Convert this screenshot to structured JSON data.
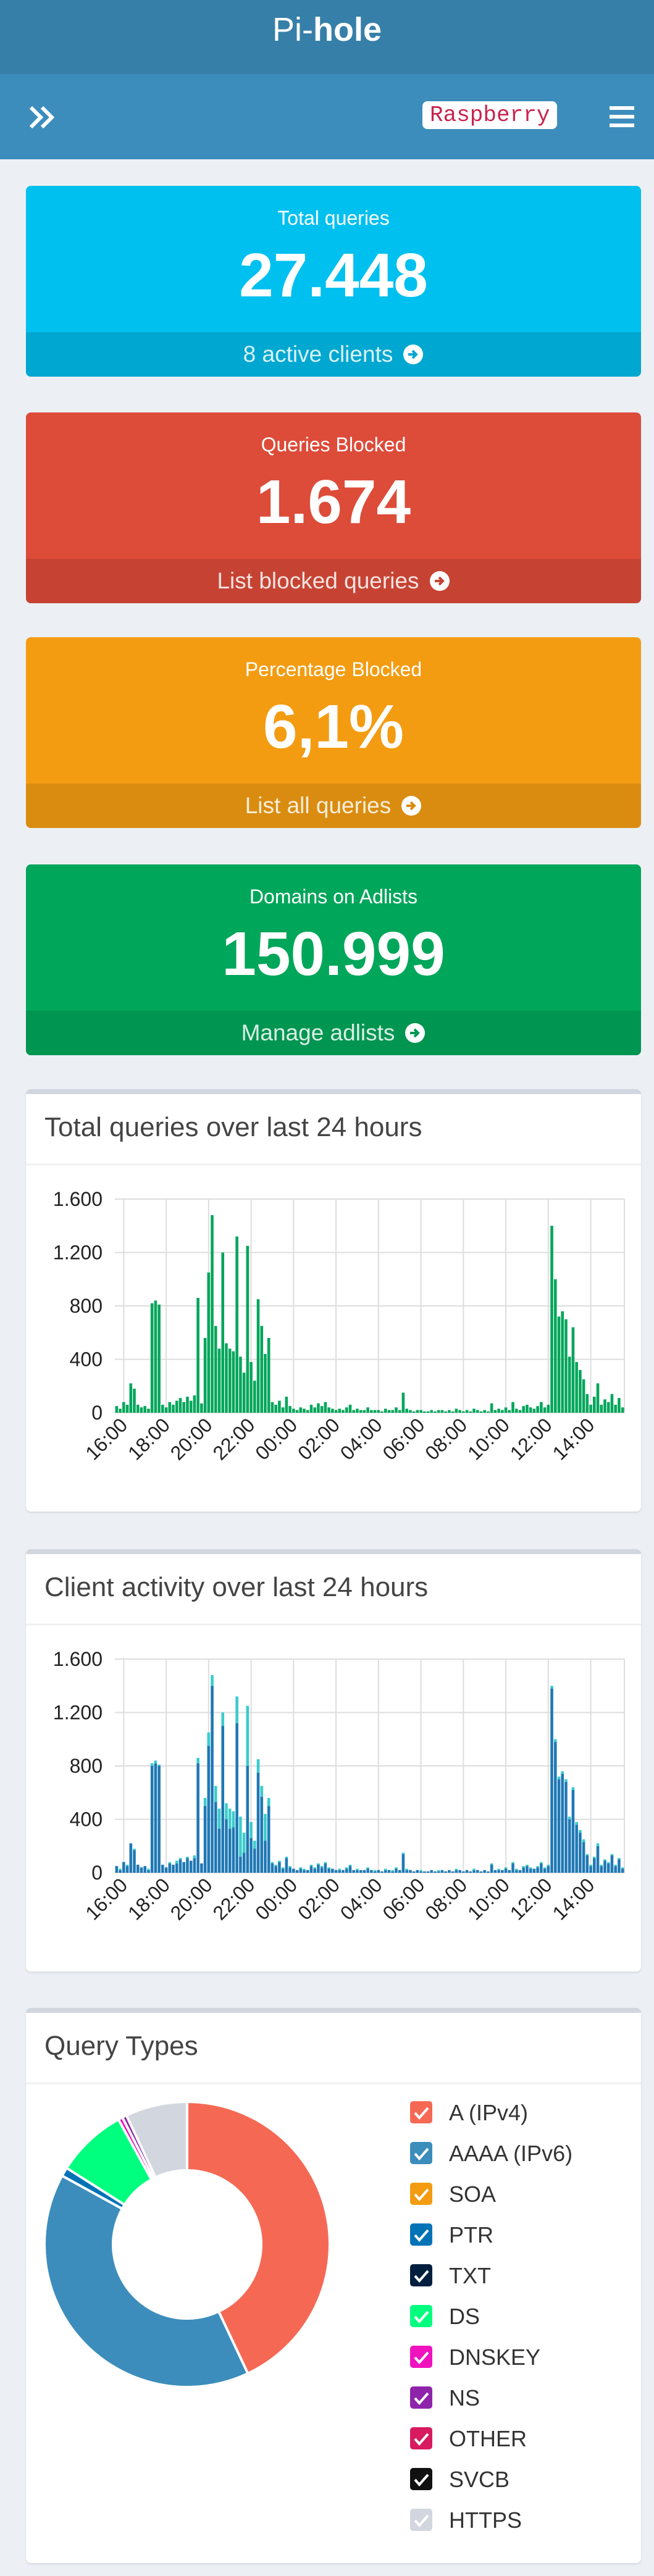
{
  "header": {
    "title_light": "Pi-",
    "title_bold": "hole",
    "hostname": "Raspberry"
  },
  "stats": [
    {
      "title": "Total queries",
      "value": "27.448",
      "link": "8 active clients"
    },
    {
      "title": "Queries Blocked",
      "value": "1.674",
      "link": "List blocked queries"
    },
    {
      "title": "Percentage Blocked",
      "value": "6,1%",
      "link": "List all queries"
    },
    {
      "title": "Domains on Adlists",
      "value": "150.999",
      "link": "Manage adlists"
    }
  ],
  "chart_data": [
    {
      "type": "bar",
      "title": "Total queries over last 24 hours",
      "stacked": true,
      "grid": true,
      "ylim": [
        0,
        1600
      ],
      "yticks": [
        0,
        400,
        800,
        {
          "value": 1200,
          "label": "1.200"
        },
        {
          "value": 1600,
          "label": "1.600"
        }
      ],
      "categories": [
        null,
        null,
        "16:00",
        null,
        null,
        null,
        null,
        null,
        null,
        null,
        null,
        null,
        null,
        null,
        "18:00",
        null,
        null,
        null,
        null,
        null,
        null,
        null,
        null,
        null,
        null,
        null,
        "20:00",
        null,
        null,
        null,
        null,
        null,
        null,
        null,
        null,
        null,
        null,
        null,
        "22:00",
        null,
        null,
        null,
        null,
        null,
        null,
        null,
        null,
        null,
        null,
        null,
        "00:00",
        null,
        null,
        null,
        null,
        null,
        null,
        null,
        null,
        null,
        null,
        null,
        "02:00",
        null,
        null,
        null,
        null,
        null,
        null,
        null,
        null,
        null,
        null,
        null,
        "04:00",
        null,
        null,
        null,
        null,
        null,
        null,
        null,
        null,
        null,
        null,
        null,
        "06:00",
        null,
        null,
        null,
        null,
        null,
        null,
        null,
        null,
        null,
        null,
        null,
        "08:00",
        null,
        null,
        null,
        null,
        null,
        null,
        null,
        null,
        null,
        null,
        null,
        "10:00",
        null,
        null,
        null,
        null,
        null,
        null,
        null,
        null,
        null,
        null,
        null,
        "12:00",
        null,
        null,
        null,
        null,
        null,
        null,
        null,
        null,
        null,
        null,
        null,
        "14:00",
        null,
        null,
        null,
        null,
        null,
        null,
        null,
        null,
        null
      ],
      "series": [
        {
          "color": "#00a65a",
          "values": [
            50,
            30,
            80,
            60,
            220,
            180,
            60,
            40,
            50,
            30,
            820,
            840,
            810,
            60,
            40,
            80,
            60,
            90,
            110,
            80,
            120,
            90,
            130,
            860,
            70,
            560,
            1050,
            1480,
            650,
            480,
            1200,
            520,
            480,
            460,
            1320,
            420,
            300,
            1250,
            380,
            240,
            850,
            650,
            440,
            560,
            80,
            60,
            90,
            40,
            120,
            50,
            30,
            20,
            40,
            30,
            20,
            60,
            40,
            70,
            50,
            80,
            40,
            30,
            20,
            30,
            20,
            40,
            60,
            20,
            30,
            20,
            20,
            40,
            20,
            20,
            20,
            10,
            30,
            20,
            20,
            40,
            20,
            150,
            30,
            20,
            10,
            20,
            20,
            10,
            10,
            20,
            10,
            20,
            20,
            10,
            20,
            10,
            30,
            20,
            10,
            20,
            10,
            30,
            20,
            10,
            20,
            10,
            70,
            20,
            30,
            20,
            40,
            20,
            80,
            30,
            20,
            50,
            60,
            40,
            30,
            50,
            80,
            40,
            60,
            1400,
            1000,
            720,
            760,
            700,
            420,
            640,
            380,
            320,
            250,
            140,
            60,
            120,
            220,
            60,
            100,
            80,
            140,
            60,
            110,
            40
          ]
        }
      ]
    },
    {
      "type": "bar",
      "title": "Client activity over last 24 hours",
      "stacked": true,
      "grid": true,
      "ylim": [
        0,
        1600
      ],
      "yticks": [
        0,
        400,
        800,
        {
          "value": 1200,
          "label": "1.200"
        },
        {
          "value": 1600,
          "label": "1.600"
        }
      ],
      "categories": [
        null,
        null,
        "16:00",
        null,
        null,
        null,
        null,
        null,
        null,
        null,
        null,
        null,
        null,
        null,
        "18:00",
        null,
        null,
        null,
        null,
        null,
        null,
        null,
        null,
        null,
        null,
        null,
        "20:00",
        null,
        null,
        null,
        null,
        null,
        null,
        null,
        null,
        null,
        null,
        null,
        "22:00",
        null,
        null,
        null,
        null,
        null,
        null,
        null,
        null,
        null,
        null,
        null,
        "00:00",
        null,
        null,
        null,
        null,
        null,
        null,
        null,
        null,
        null,
        null,
        null,
        "02:00",
        null,
        null,
        null,
        null,
        null,
        null,
        null,
        null,
        null,
        null,
        null,
        "04:00",
        null,
        null,
        null,
        null,
        null,
        null,
        null,
        null,
        null,
        null,
        null,
        "06:00",
        null,
        null,
        null,
        null,
        null,
        null,
        null,
        null,
        null,
        null,
        null,
        "08:00",
        null,
        null,
        null,
        null,
        null,
        null,
        null,
        null,
        null,
        null,
        null,
        "10:00",
        null,
        null,
        null,
        null,
        null,
        null,
        null,
        null,
        null,
        null,
        null,
        "12:00",
        null,
        null,
        null,
        null,
        null,
        null,
        null,
        null,
        null,
        null,
        null,
        "14:00",
        null,
        null,
        null,
        null,
        null,
        null,
        null,
        null,
        null
      ],
      "series": [
        {
          "color": "#1f78b4",
          "values": [
            50,
            20,
            80,
            50,
            220,
            170,
            60,
            40,
            50,
            20,
            800,
            820,
            800,
            60,
            40,
            70,
            60,
            70,
            100,
            80,
            110,
            90,
            110,
            820,
            70,
            500,
            950,
            1400,
            530,
            330,
            1100,
            400,
            330,
            340,
            1120,
            120,
            150,
            800,
            260,
            180,
            750,
            570,
            240,
            500,
            70,
            50,
            80,
            30,
            110,
            40,
            30,
            20,
            30,
            20,
            20,
            50,
            30,
            60,
            40,
            70,
            30,
            30,
            20,
            20,
            20,
            30,
            50,
            20,
            20,
            20,
            20,
            30,
            20,
            10,
            20,
            10,
            20,
            20,
            10,
            30,
            20,
            140,
            20,
            20,
            10,
            20,
            10,
            10,
            10,
            20,
            10,
            10,
            20,
            10,
            20,
            10,
            20,
            20,
            10,
            20,
            10,
            20,
            20,
            10,
            20,
            10,
            60,
            20,
            20,
            20,
            30,
            20,
            70,
            20,
            20,
            40,
            50,
            30,
            30,
            40,
            70,
            30,
            50,
            1380,
            980,
            700,
            740,
            680,
            400,
            620,
            360,
            300,
            230,
            130,
            50,
            110,
            200,
            50,
            90,
            70,
            130,
            50,
            100,
            30
          ]
        },
        {
          "color": "#39cccc",
          "values": [
            0,
            10,
            0,
            10,
            0,
            10,
            0,
            0,
            0,
            10,
            20,
            20,
            10,
            0,
            0,
            10,
            0,
            20,
            10,
            0,
            10,
            0,
            20,
            40,
            0,
            60,
            100,
            80,
            120,
            150,
            100,
            120,
            150,
            120,
            200,
            300,
            150,
            450,
            120,
            60,
            100,
            80,
            200,
            60,
            10,
            10,
            10,
            10,
            10,
            10,
            0,
            0,
            10,
            10,
            0,
            10,
            10,
            10,
            10,
            10,
            10,
            0,
            0,
            10,
            0,
            10,
            10,
            0,
            10,
            0,
            0,
            10,
            0,
            10,
            0,
            0,
            10,
            0,
            10,
            10,
            0,
            10,
            10,
            0,
            0,
            0,
            10,
            0,
            0,
            0,
            0,
            10,
            0,
            0,
            0,
            0,
            10,
            0,
            0,
            0,
            0,
            10,
            0,
            0,
            0,
            0,
            10,
            0,
            10,
            0,
            10,
            0,
            10,
            10,
            0,
            10,
            10,
            10,
            0,
            10,
            10,
            10,
            10,
            20,
            20,
            20,
            20,
            20,
            20,
            20,
            20,
            20,
            20,
            10,
            10,
            10,
            20,
            10,
            10,
            10,
            10,
            10,
            10,
            10
          ]
        }
      ]
    },
    {
      "type": "pie",
      "title": "Query Types",
      "donut": true,
      "categories": [
        "A (IPv4)",
        "AAAA (IPv6)",
        "SOA",
        "PTR",
        "TXT",
        "DS",
        "DNSKEY",
        "NS",
        "OTHER",
        "SVCB",
        "HTTPS"
      ],
      "values": [
        43,
        40,
        0,
        1,
        0,
        8,
        0.5,
        0.5,
        0,
        0,
        7
      ],
      "colors": [
        "#f56954",
        "#3c8dbc",
        "#f39c12",
        "#0073b7",
        "#001f3f",
        "#00ff7f",
        "#f012be",
        "#8e24aa",
        "#d81b60",
        "#111111",
        "#d2d6de"
      ]
    }
  ]
}
